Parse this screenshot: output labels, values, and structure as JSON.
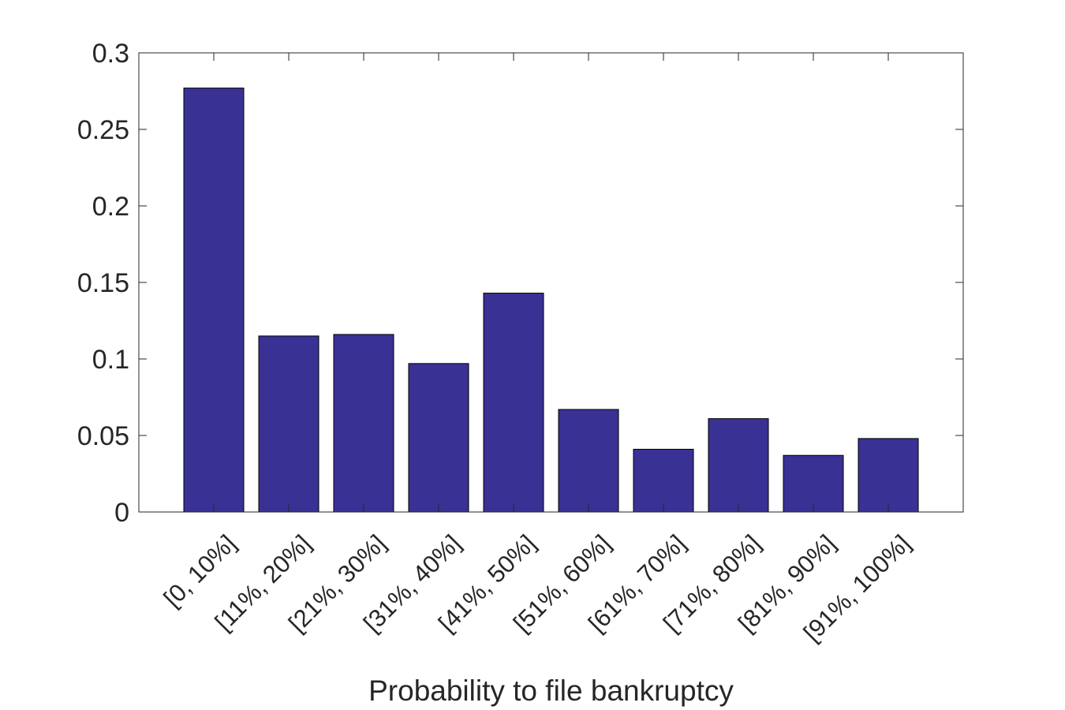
{
  "chart_data": {
    "type": "bar",
    "title": "",
    "xlabel": "Probability to file bankruptcy",
    "ylabel": "",
    "categories": [
      "[0, 10%]",
      "[11%, 20%]",
      "[21%, 30%]",
      "[31%, 40%]",
      "[41%, 50%]",
      "[51%, 60%]",
      "[61%, 70%]",
      "[71%, 80%]",
      "[81%, 90%]",
      "[91%, 100%]"
    ],
    "values": [
      0.277,
      0.115,
      0.116,
      0.097,
      0.143,
      0.067,
      0.041,
      0.061,
      0.037,
      0.048
    ],
    "ylim": [
      0,
      0.3
    ],
    "yticks": [
      "0",
      "0.05",
      "0.1",
      "0.15",
      "0.2",
      "0.25",
      "0.3"
    ],
    "grid": false,
    "bar_color": "#3a3195",
    "edge_color": "#000000"
  }
}
